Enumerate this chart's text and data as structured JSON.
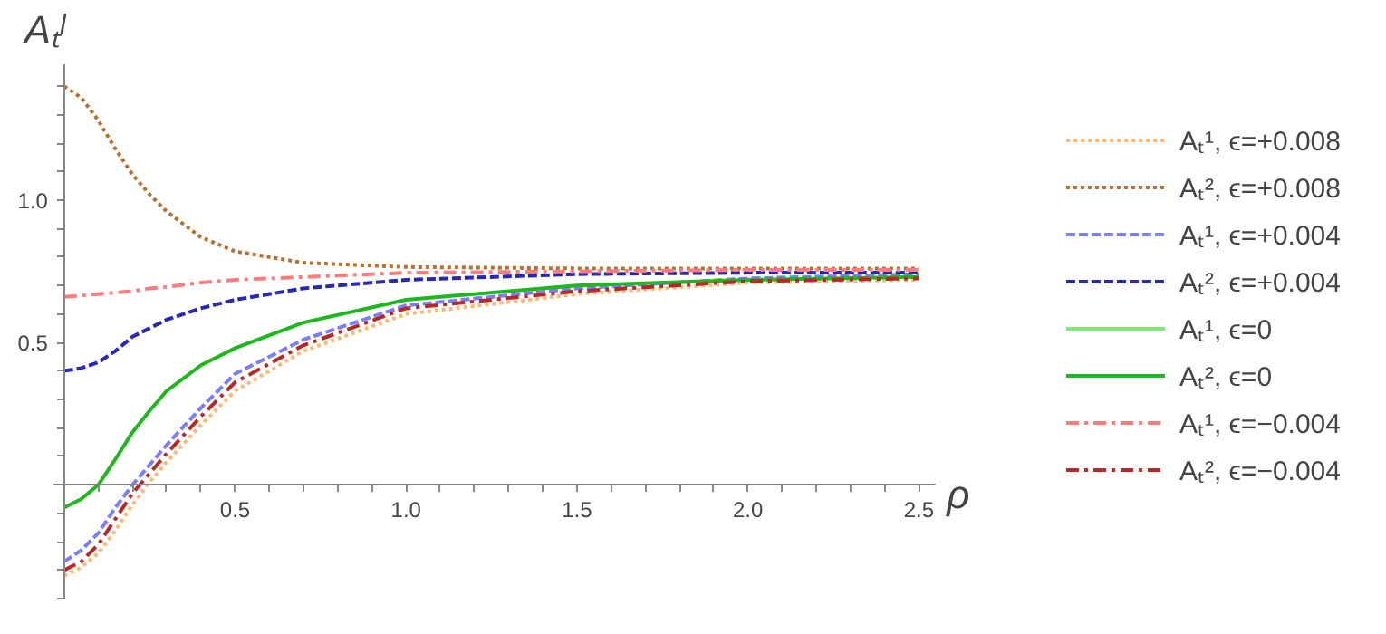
{
  "chart_data": {
    "type": "line",
    "xlabel": "ρ",
    "ylabel": "Aₜˡ",
    "x": [
      0,
      0.05,
      0.1,
      0.15,
      0.2,
      0.25,
      0.3,
      0.4,
      0.5,
      0.7,
      1.0,
      1.5,
      2.0,
      2.5
    ],
    "xlim": [
      -0.03,
      2.55
    ],
    "ylim": [
      -0.4,
      1.48
    ],
    "xticks": [
      {
        "value": 0.1,
        "label": null
      },
      {
        "value": 0.2,
        "label": null
      },
      {
        "value": 0.3,
        "label": null
      },
      {
        "value": 0.4,
        "label": null
      },
      0.5,
      {
        "value": 0.6,
        "label": null
      },
      {
        "value": 0.7,
        "label": null
      },
      {
        "value": 0.8,
        "label": null
      },
      {
        "value": 0.9,
        "label": null
      },
      {
        "value": 1.0,
        "label": "1.0"
      },
      {
        "value": 1.1,
        "label": null
      },
      {
        "value": 1.2,
        "label": null
      },
      {
        "value": 1.3,
        "label": null
      },
      {
        "value": 1.4,
        "label": null
      },
      1.5,
      {
        "value": 1.6,
        "label": null
      },
      {
        "value": 1.7,
        "label": null
      },
      {
        "value": 1.8,
        "label": null
      },
      {
        "value": 1.9,
        "label": null
      },
      {
        "value": 2.0,
        "label": "2.0"
      },
      {
        "value": 2.1,
        "label": null
      },
      {
        "value": 2.2,
        "label": null
      },
      {
        "value": 2.3,
        "label": null
      },
      {
        "value": 2.4,
        "label": null
      },
      2.5
    ],
    "yticks": [
      {
        "value": -0.4,
        "label": null
      },
      {
        "value": -0.3,
        "label": null
      },
      {
        "value": -0.2,
        "label": null
      },
      {
        "value": -0.1,
        "label": null
      },
      {
        "value": 0.1,
        "label": null
      },
      {
        "value": 0.2,
        "label": null
      },
      {
        "value": 0.3,
        "label": null
      },
      {
        "value": 0.4,
        "label": null
      },
      0.5,
      {
        "value": 0.6,
        "label": null
      },
      {
        "value": 0.7,
        "label": null
      },
      {
        "value": 0.8,
        "label": null
      },
      {
        "value": 0.9,
        "label": null
      },
      {
        "value": 1.0,
        "label": "1.0"
      },
      {
        "value": 1.1,
        "label": null
      },
      {
        "value": 1.2,
        "label": null
      },
      {
        "value": 1.3,
        "label": null
      },
      {
        "value": 1.4,
        "label": null
      }
    ],
    "legend": "right",
    "grid": false,
    "series": [
      {
        "name": "Aₜ¹, ϵ=+0.008",
        "color": "#ffb870",
        "line_style": "dotted",
        "values": [
          -0.32,
          -0.29,
          -0.24,
          -0.16,
          -0.07,
          0.01,
          0.08,
          0.21,
          0.33,
          0.47,
          0.6,
          0.67,
          0.71,
          0.72
        ]
      },
      {
        "name": "Aₜ², ϵ=+0.008",
        "color": "#b8702c",
        "line_style": "dotted",
        "values": [
          1.4,
          1.36,
          1.28,
          1.18,
          1.09,
          1.02,
          0.96,
          0.87,
          0.82,
          0.78,
          0.765,
          0.76,
          0.76,
          0.76
        ]
      },
      {
        "name": "Aₜ¹, ϵ=+0.004",
        "color": "#7c7cff",
        "line_style": "dashed",
        "values": [
          -0.27,
          -0.23,
          -0.17,
          -0.08,
          0.0,
          0.07,
          0.14,
          0.27,
          0.39,
          0.51,
          0.63,
          0.69,
          0.725,
          0.74
        ]
      },
      {
        "name": "Aₜ², ϵ=+0.004",
        "color": "#2828b8",
        "line_style": "dashed",
        "values": [
          0.4,
          0.41,
          0.43,
          0.47,
          0.52,
          0.55,
          0.58,
          0.62,
          0.65,
          0.69,
          0.72,
          0.74,
          0.745,
          0.745
        ]
      },
      {
        "name": "Aₜ¹, ϵ=0",
        "color": "#70f070",
        "line_style": "solid",
        "values": [
          null,
          null,
          null,
          null,
          null,
          null,
          null,
          null,
          null,
          null,
          null,
          null,
          null,
          null
        ]
      },
      {
        "name": "Aₜ², ϵ=0",
        "color": "#1cb81c",
        "line_style": "solid",
        "values": [
          -0.08,
          -0.05,
          0.0,
          0.09,
          0.185,
          0.26,
          0.33,
          0.42,
          0.48,
          0.57,
          0.65,
          0.7,
          0.72,
          0.73
        ]
      },
      {
        "name": "Aₜ¹, ϵ=−0.004",
        "color": "#ff7c7c",
        "line_style": "dashdot",
        "values": [
          0.66,
          0.665,
          0.67,
          0.675,
          0.68,
          0.69,
          0.695,
          0.71,
          0.72,
          0.73,
          0.745,
          0.75,
          0.755,
          0.755
        ]
      },
      {
        "name": "Aₜ², ϵ=−0.004",
        "color": "#b82828",
        "line_style": "dashdot",
        "values": [
          -0.3,
          -0.27,
          -0.21,
          -0.12,
          -0.03,
          0.04,
          0.11,
          0.24,
          0.36,
          0.49,
          0.62,
          0.68,
          0.715,
          0.725
        ]
      }
    ]
  }
}
